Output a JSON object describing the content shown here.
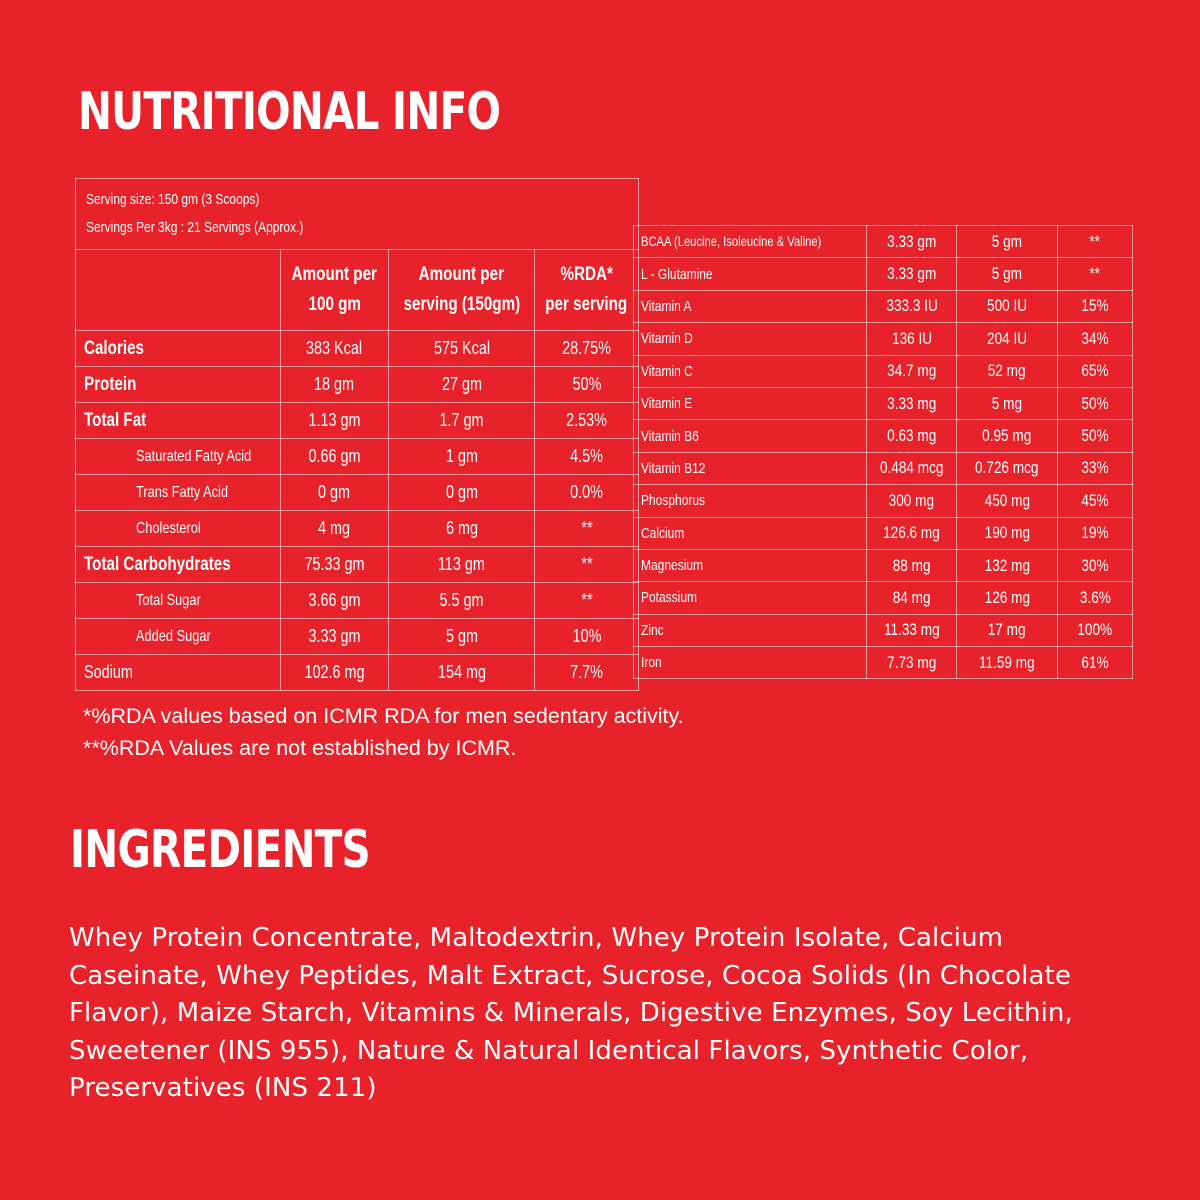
{
  "headings": {
    "nutritional_info": "NUTRITIONAL INFO",
    "ingredients": "INGREDIENTS"
  },
  "serving": {
    "size": "Serving size: 150 gm (3 Scoops)",
    "per_pack": "Servings Per 3kg : 21 Servings (Approx.)"
  },
  "columns": {
    "per_100g": [
      "Amount per",
      "100 gm"
    ],
    "per_serving": [
      "Amount per",
      "serving (150gm)"
    ],
    "rda": [
      "%RDA*",
      "per serving"
    ]
  },
  "nutrition": [
    {
      "name": "Calories",
      "per_100g": "383 Kcal",
      "per_serving": "575 Kcal",
      "rda": "28.75%"
    },
    {
      "name": "Protein",
      "per_100g": "18 gm",
      "per_serving": "27 gm",
      "rda": "50%"
    },
    {
      "name": "Total Fat",
      "per_100g": "1.13 gm",
      "per_serving": "1.7 gm",
      "rda": "2.53%"
    },
    {
      "name": "Saturated Fatty Acid",
      "per_100g": "0.66 gm",
      "per_serving": "1 gm",
      "rda": "4.5%"
    },
    {
      "name": "Trans Fatty Acid",
      "per_100g": "0 gm",
      "per_serving": "0 gm",
      "rda": "0.0%"
    },
    {
      "name": "Cholesterol",
      "per_100g": "4 mg",
      "per_serving": "6 mg",
      "rda": "**"
    },
    {
      "name": "Total Carbohydrates",
      "per_100g": "75.33 gm",
      "per_serving": "113 gm",
      "rda": "**"
    },
    {
      "name": "Total Sugar",
      "per_100g": "3.66 gm",
      "per_serving": "5.5 gm",
      "rda": "**"
    },
    {
      "name": "Added Sugar",
      "per_100g": "3.33 gm",
      "per_serving": "5 gm",
      "rda": "10%"
    },
    {
      "name": "Sodium",
      "per_100g": "102.6 mg",
      "per_serving": "154 mg",
      "rda": "7.7%"
    }
  ],
  "micronutrients": [
    {
      "name": "BCAA (Leucine, Isoleucine & Valine)",
      "per_100g": "3.33 gm",
      "per_serving": "5 gm",
      "rda": "**"
    },
    {
      "name": "L - Glutamine",
      "per_100g": "3.33 gm",
      "per_serving": "5 gm",
      "rda": "**"
    },
    {
      "name": "Vitamin A",
      "per_100g": "333.3 IU",
      "per_serving": "500 IU",
      "rda": "15%"
    },
    {
      "name": "Vitamin D",
      "per_100g": "136 IU",
      "per_serving": "204 IU",
      "rda": "34%"
    },
    {
      "name": "Vitamin C",
      "per_100g": "34.7 mg",
      "per_serving": "52 mg",
      "rda": "65%"
    },
    {
      "name": "Vitamin E",
      "per_100g": "3.33 mg",
      "per_serving": "5 mg",
      "rda": "50%"
    },
    {
      "name": "Vitamin B6",
      "per_100g": "0.63 mg",
      "per_serving": "0.95 mg",
      "rda": "50%"
    },
    {
      "name": "Vitamin B12",
      "per_100g": "0.484 mcg",
      "per_serving": "0.726 mcg",
      "rda": "33%"
    },
    {
      "name": "Phosphorus",
      "per_100g": "300 mg",
      "per_serving": "450 mg",
      "rda": "45%"
    },
    {
      "name": "Calcium",
      "per_100g": "126.6 mg",
      "per_serving": "190 mg",
      "rda": "19%"
    },
    {
      "name": "Magnesium",
      "per_100g": "88 mg",
      "per_serving": "132 mg",
      "rda": "30%"
    },
    {
      "name": "Potassium",
      "per_100g": "84 mg",
      "per_serving": "126 mg",
      "rda": "3.6%"
    },
    {
      "name": "Zinc",
      "per_100g": "11.33 mg",
      "per_serving": "17 mg",
      "rda": "100%"
    },
    {
      "name": "Iron",
      "per_100g": "7.73 mg",
      "per_serving": "11.59 mg",
      "rda": "61%"
    }
  ],
  "footnotes": [
    "*%RDA values based on ICMR RDA for men sedentary activity.",
    "**%RDA Values are not established by ICMR."
  ],
  "ingredients_text": "Whey Protein Concentrate, Maltodextrin, Whey Protein Isolate, Calcium Caseinate, Whey Peptides, Malt Extract, Sucrose, Cocoa Solids (In Chocolate Flavor), Maize Starch, Vitamins & Minerals, Digestive Enzymes, Soy Lecithin, Sweetener (INS 955), Nature & Natural Identical Flavors, Synthetic Color, Preservatives (INS 211)",
  "colors": {
    "background": "#e8222a",
    "text": "#ffffff"
  }
}
